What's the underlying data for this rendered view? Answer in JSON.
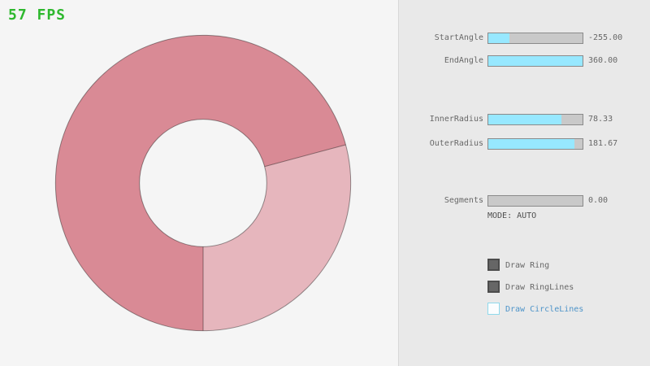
{
  "app": {
    "fps_label": "57 FPS"
  },
  "ring": {
    "start_angle": -255,
    "end_angle": 360,
    "inner_radius": 78.33,
    "outer_radius": 181.67,
    "fill_color": "#e6b6bd",
    "overlap_color": "#d98a95",
    "line_color": "rgba(0,0,0,0.4)"
  },
  "panel": {
    "sliders": [
      {
        "label": "StartAngle",
        "value": "-255.00",
        "fill_pct": 22
      },
      {
        "label": "EndAngle",
        "value": "360.00",
        "fill_pct": 100
      },
      {
        "label": "InnerRadius",
        "value": "78.33",
        "fill_pct": 78
      },
      {
        "label": "OuterRadius",
        "value": "181.67",
        "fill_pct": 91
      },
      {
        "label": "Segments",
        "value": "0.00",
        "fill_pct": 0
      }
    ],
    "mode_label": "MODE: AUTO",
    "checkboxes": [
      {
        "label": "Draw Ring",
        "checked": true
      },
      {
        "label": "Draw RingLines",
        "checked": true
      },
      {
        "label": "Draw CircleLines",
        "checked": false
      }
    ]
  },
  "colors": {
    "fps_green": "#2eb82e",
    "slider_fill_cyan": "#97e8ff",
    "slider_track_gray": "#c9c9c9",
    "panel_gray": "#e9e9e9",
    "background": "#f5f5f5",
    "ring_single": "#e6b6bd",
    "ring_overlap": "#d98a95",
    "accent_blue": "#4e94c9"
  }
}
